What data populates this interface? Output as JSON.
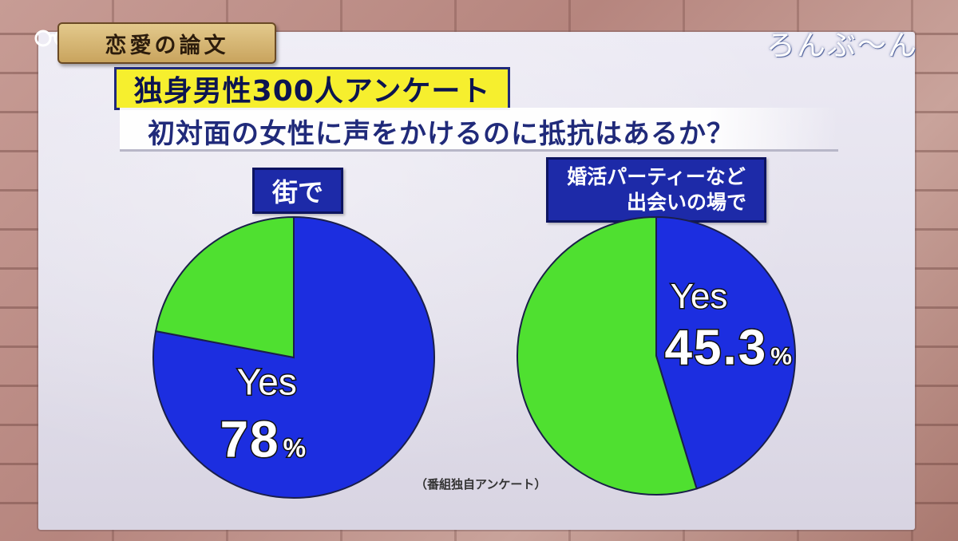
{
  "header": {
    "segment_title": "恋愛の論文",
    "logo": "ろんぶ〜ん"
  },
  "headline": {
    "survey_tag": "独身男性300人アンケート",
    "question": "初対面の女性に声をかけるのに抵抗はあるか？"
  },
  "source_note": "（番組独自アンケート）",
  "colors": {
    "yes": "#1c2ee0",
    "other": "#4fe030",
    "tag_yellow": "#f6ef2e",
    "caption_blue": "#1d2aa8"
  },
  "chart_data": [
    {
      "type": "pie",
      "title": "街で",
      "slices": [
        {
          "label": "Yes",
          "value": 78,
          "display": "78",
          "unit": "%",
          "color": "#1c2ee0"
        },
        {
          "label": "",
          "value": 22,
          "color": "#4fe030"
        }
      ],
      "start": "12 o'clock",
      "direction": "clockwise"
    },
    {
      "type": "pie",
      "title": "婚活パーティーなど 出会いの場で",
      "title_lines": [
        "婚活パーティーなど",
        "出会いの場で"
      ],
      "slices": [
        {
          "label": "Yes",
          "value": 45.3,
          "display": "45.3",
          "unit": "%",
          "color": "#1c2ee0"
        },
        {
          "label": "",
          "value": 54.7,
          "color": "#4fe030"
        }
      ],
      "start": "12 o'clock",
      "direction": "clockwise"
    }
  ]
}
